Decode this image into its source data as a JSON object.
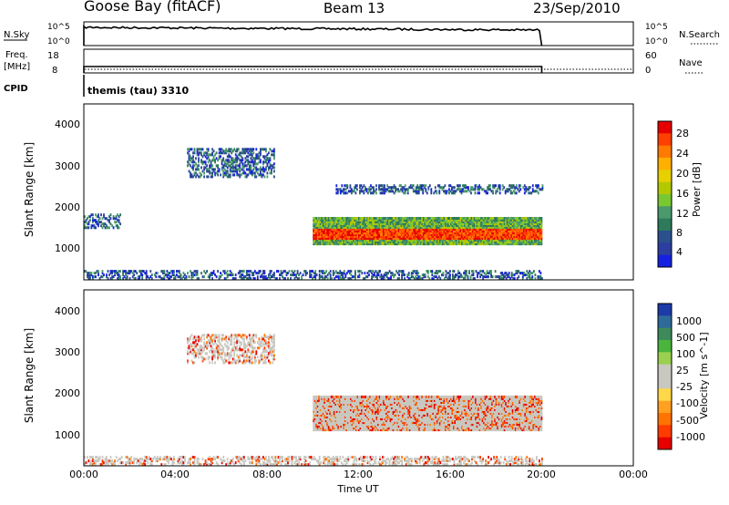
{
  "header": {
    "station": "Goose Bay (fitACF)",
    "beam": "Beam 13",
    "date": "23/Sep/2010"
  },
  "noise_panel": {
    "left_label": "N.Sky",
    "right_label": "N.Search",
    "left_ticks": [
      "10^5",
      "10^0"
    ],
    "right_ticks": [
      "10^5",
      "10^0"
    ]
  },
  "freq_panel": {
    "left_label_1": "Freq.",
    "left_label_2": "[MHz]",
    "right_label": "Nave",
    "left_ticks": [
      "18",
      "8"
    ],
    "right_ticks": [
      "60",
      "0"
    ]
  },
  "cpid": {
    "label": "CPID",
    "value": "themis (tau) 3310"
  },
  "chart_data": [
    {
      "type": "heatmap",
      "name": "power",
      "ylabel": "Slant Range [km]",
      "y_ticks": [
        "4000",
        "3000",
        "2000",
        "1000"
      ],
      "ylim": [
        180,
        4500
      ],
      "x_hours": [
        0,
        4,
        8,
        12,
        16,
        20,
        24
      ],
      "colorbar_label": "Power [dB]",
      "colorbar_ticks": [
        "28",
        "24",
        "20",
        "16",
        "12",
        "8",
        "4"
      ],
      "colorbar_colors": [
        "#e60000",
        "#ff4000",
        "#ff7a00",
        "#ffb000",
        "#e6d000",
        "#b4c800",
        "#78c832",
        "#4a9a6e",
        "#2e7a5a",
        "#2a508e",
        "#2c3ea0",
        "#1520e0"
      ],
      "echo_regions": [
        {
          "label": "early near-range echoes",
          "t_start": 0.0,
          "t_end": 1.6,
          "r_start": 1450,
          "r_end": 1800
        },
        {
          "label": "far-range arc",
          "t_start": 4.5,
          "t_end": 8.3,
          "r_start": 2700,
          "r_end": 3400
        },
        {
          "label": "main F-region band",
          "t_start": 10.0,
          "t_end": 20.0,
          "r_start": 1050,
          "r_end": 1700
        },
        {
          "label": "upper band",
          "t_start": 11.0,
          "t_end": 20.0,
          "r_start": 2300,
          "r_end": 2500
        },
        {
          "label": "ground scatter floor",
          "t_start": 0.0,
          "t_end": 20.0,
          "r_start": 200,
          "r_end": 420
        }
      ]
    },
    {
      "type": "heatmap",
      "name": "velocity",
      "ylabel": "Slant Range [km]",
      "y_ticks": [
        "4000",
        "3000",
        "2000",
        "1000"
      ],
      "ylim": [
        180,
        4500
      ],
      "x_hours": [
        0,
        4,
        8,
        12,
        16,
        20,
        24
      ],
      "colorbar_label": "Velocity [m s^-1]",
      "colorbar_ticks": [
        "1000",
        "500",
        "100",
        "25",
        "-25",
        "-100",
        "-500",
        "-1000"
      ],
      "colorbar_colors": [
        "#1c3aa8",
        "#2e6a9a",
        "#3f8a5a",
        "#4ab43c",
        "#9ad04e",
        "#c8c8c0",
        "#c8c8c0",
        "#ffd84a",
        "#ffa020",
        "#ff7400",
        "#ff3c00",
        "#e60000"
      ],
      "echo_regions": [
        {
          "label": "ground scatter (grey)",
          "t_start": 10.0,
          "t_end": 20.0,
          "r_start": 1050,
          "r_end": 1900
        },
        {
          "label": "far-range arc",
          "t_start": 4.5,
          "t_end": 8.3,
          "r_start": 2700,
          "r_end": 3400
        },
        {
          "label": "near range",
          "t_start": 0.0,
          "t_end": 20.0,
          "r_start": 200,
          "r_end": 420
        }
      ]
    }
  ],
  "x_axis": {
    "tick_labels": [
      "00:00",
      "04:00",
      "08:00",
      "12:00",
      "16:00",
      "20:00",
      "00:00"
    ],
    "label": "Time UT"
  },
  "colors": {
    "line": "#000000"
  }
}
